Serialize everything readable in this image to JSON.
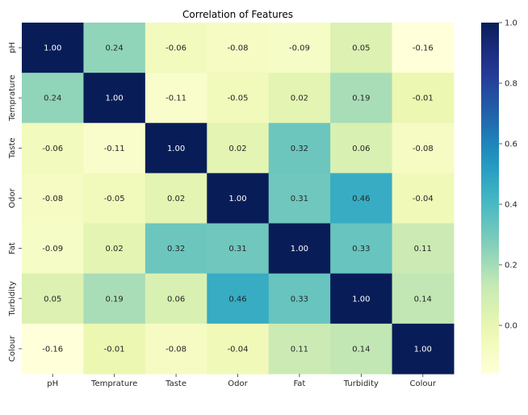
{
  "chart_data": {
    "type": "heatmap",
    "title": "Correlation of Features",
    "labels": [
      "pH",
      "Temprature",
      "Taste",
      "Odor",
      "Fat",
      "Turbidity",
      "Colour"
    ],
    "values": [
      [
        1.0,
        0.24,
        -0.06,
        -0.08,
        -0.09,
        0.05,
        -0.16
      ],
      [
        0.24,
        1.0,
        -0.11,
        -0.05,
        0.02,
        0.19,
        -0.01
      ],
      [
        -0.06,
        -0.11,
        1.0,
        0.02,
        0.32,
        0.06,
        -0.08
      ],
      [
        -0.08,
        -0.05,
        0.02,
        1.0,
        0.31,
        0.46,
        -0.04
      ],
      [
        -0.09,
        0.02,
        0.32,
        0.31,
        1.0,
        0.33,
        0.11
      ],
      [
        0.05,
        0.19,
        0.06,
        0.46,
        0.33,
        1.0,
        0.14
      ],
      [
        -0.16,
        -0.01,
        -0.08,
        -0.04,
        0.11,
        0.14,
        1.0
      ]
    ],
    "annotation_format": "0.00",
    "colormap": "YlGnBu",
    "colorbar": {
      "range": [
        -0.16,
        1.0
      ],
      "ticks": [
        0.0,
        0.2,
        0.4,
        0.6,
        0.8,
        1.0
      ],
      "tick_labels": [
        "0.0",
        "0.2",
        "0.4",
        "0.6",
        "0.8",
        "1.0"
      ]
    }
  }
}
